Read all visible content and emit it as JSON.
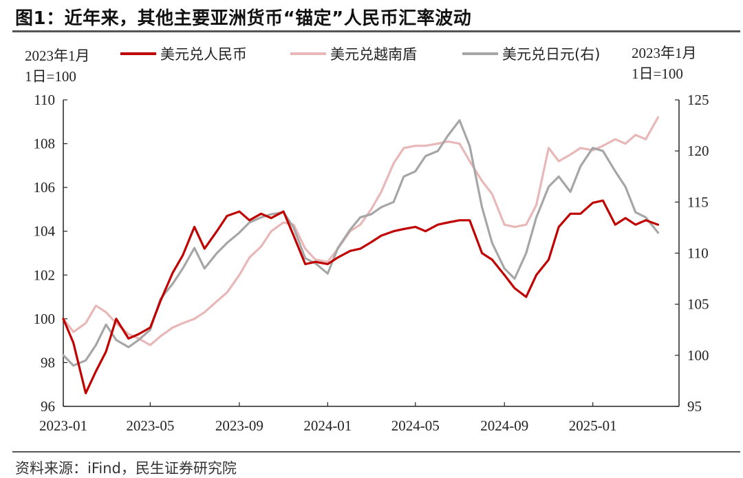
{
  "title": "图1：近年来，其他主要亚洲货币“锚定”人民币汇率波动",
  "source": "资料来源：iFind，民生证券研究院",
  "chart_data": {
    "type": "line",
    "left_unit": [
      "2023年1月",
      "1日=100"
    ],
    "right_unit": [
      "2023年1月",
      "1日=100"
    ],
    "y_left": {
      "min": 96,
      "max": 110,
      "ticks": [
        "96",
        "98",
        "100",
        "102",
        "104",
        "106",
        "108",
        "110"
      ]
    },
    "y_right": {
      "min": 95,
      "max": 125,
      "ticks": [
        "95",
        "100",
        "105",
        "110",
        "115",
        "120",
        "125"
      ]
    },
    "x_ticks": [
      "2023-01",
      "2023-05",
      "2023-09",
      "2024-01",
      "2024-05",
      "2024-09",
      "2025-01"
    ],
    "legend_position": "top",
    "series": [
      {
        "name": "美元兑人民币",
        "axis": "left",
        "color": "#c00000",
        "points": [
          [
            "2023-01",
            100.0
          ],
          [
            "2023-01-15",
            98.9
          ],
          [
            "2023-02",
            96.6
          ],
          [
            "2023-02-15",
            97.6
          ],
          [
            "2023-03",
            98.5
          ],
          [
            "2023-03-15",
            100.0
          ],
          [
            "2023-04",
            99.1
          ],
          [
            "2023-04-15",
            99.3
          ],
          [
            "2023-05",
            99.6
          ],
          [
            "2023-05-15",
            100.8
          ],
          [
            "2023-06",
            102.1
          ],
          [
            "2023-06-15",
            102.9
          ],
          [
            "2023-07",
            104.2
          ],
          [
            "2023-07-15",
            103.2
          ],
          [
            "2023-08",
            104.0
          ],
          [
            "2023-08-15",
            104.7
          ],
          [
            "2023-09",
            104.9
          ],
          [
            "2023-09-15",
            104.5
          ],
          [
            "2023-10",
            104.8
          ],
          [
            "2023-10-15",
            104.6
          ],
          [
            "2023-11",
            104.9
          ],
          [
            "2023-11-15",
            103.8
          ],
          [
            "2023-12",
            102.5
          ],
          [
            "2023-12-15",
            102.6
          ],
          [
            "2024-01",
            102.5
          ],
          [
            "2024-01-15",
            102.8
          ],
          [
            "2024-02",
            103.1
          ],
          [
            "2024-02-15",
            103.2
          ],
          [
            "2024-03",
            103.5
          ],
          [
            "2024-03-15",
            103.8
          ],
          [
            "2024-04",
            104.0
          ],
          [
            "2024-04-15",
            104.1
          ],
          [
            "2024-05",
            104.2
          ],
          [
            "2024-05-15",
            104.0
          ],
          [
            "2024-06",
            104.3
          ],
          [
            "2024-06-15",
            104.4
          ],
          [
            "2024-07",
            104.5
          ],
          [
            "2024-07-15",
            104.5
          ],
          [
            "2024-08",
            103.0
          ],
          [
            "2024-08-15",
            102.7
          ],
          [
            "2024-09",
            102.0
          ],
          [
            "2024-09-15",
            101.4
          ],
          [
            "2024-10",
            101.0
          ],
          [
            "2024-10-15",
            102.0
          ],
          [
            "2024-11",
            102.7
          ],
          [
            "2024-11-15",
            104.2
          ],
          [
            "2024-12",
            104.8
          ],
          [
            "2024-12-15",
            104.8
          ],
          [
            "2025-01",
            105.3
          ],
          [
            "2025-01-15",
            105.4
          ],
          [
            "2025-02",
            104.3
          ],
          [
            "2025-02-15",
            104.6
          ],
          [
            "2025-03",
            104.3
          ],
          [
            "2025-03-15",
            104.5
          ],
          [
            "2025-04",
            104.3
          ]
        ]
      },
      {
        "name": "美元兑越南盾",
        "axis": "left",
        "color": "#e8b7b7",
        "points": [
          [
            "2023-01",
            100.0
          ],
          [
            "2023-01-15",
            99.4
          ],
          [
            "2023-02",
            99.8
          ],
          [
            "2023-02-15",
            100.6
          ],
          [
            "2023-03",
            100.3
          ],
          [
            "2023-03-15",
            99.8
          ],
          [
            "2023-04",
            99.3
          ],
          [
            "2023-04-15",
            99.1
          ],
          [
            "2023-05",
            98.8
          ],
          [
            "2023-05-15",
            99.2
          ],
          [
            "2023-06",
            99.6
          ],
          [
            "2023-06-15",
            99.8
          ],
          [
            "2023-07",
            100.0
          ],
          [
            "2023-07-15",
            100.3
          ],
          [
            "2023-08",
            100.8
          ],
          [
            "2023-08-15",
            101.2
          ],
          [
            "2023-09",
            102.0
          ],
          [
            "2023-09-15",
            102.8
          ],
          [
            "2023-10",
            103.3
          ],
          [
            "2023-10-15",
            104.0
          ],
          [
            "2023-11",
            104.4
          ],
          [
            "2023-11-15",
            104.3
          ],
          [
            "2023-12",
            103.2
          ],
          [
            "2023-12-15",
            102.7
          ],
          [
            "2024-01",
            102.6
          ],
          [
            "2024-01-15",
            103.2
          ],
          [
            "2024-02",
            104.0
          ],
          [
            "2024-02-15",
            104.3
          ],
          [
            "2024-03",
            105.0
          ],
          [
            "2024-03-15",
            105.8
          ],
          [
            "2024-04",
            107.1
          ],
          [
            "2024-04-15",
            107.8
          ],
          [
            "2024-05",
            107.9
          ],
          [
            "2024-05-15",
            107.9
          ],
          [
            "2024-06",
            108.0
          ],
          [
            "2024-06-15",
            108.1
          ],
          [
            "2024-07",
            108.0
          ],
          [
            "2024-07-15",
            107.2
          ],
          [
            "2024-08",
            106.3
          ],
          [
            "2024-08-15",
            105.7
          ],
          [
            "2024-09",
            104.3
          ],
          [
            "2024-09-15",
            104.2
          ],
          [
            "2024-10",
            104.3
          ],
          [
            "2024-10-15",
            105.2
          ],
          [
            "2024-11",
            107.8
          ],
          [
            "2024-11-15",
            107.2
          ],
          [
            "2024-12",
            107.5
          ],
          [
            "2024-12-15",
            107.8
          ],
          [
            "2025-01",
            107.7
          ],
          [
            "2025-01-15",
            107.9
          ],
          [
            "2025-02",
            108.2
          ],
          [
            "2025-02-15",
            108.0
          ],
          [
            "2025-03",
            108.4
          ],
          [
            "2025-03-15",
            108.2
          ],
          [
            "2025-04",
            109.2
          ]
        ]
      },
      {
        "name": "美元兑日元(右)",
        "axis": "right",
        "color": "#a6a6a6",
        "points": [
          [
            "2023-01",
            100.0
          ],
          [
            "2023-01-15",
            99.0
          ],
          [
            "2023-02",
            99.5
          ],
          [
            "2023-02-15",
            101.0
          ],
          [
            "2023-03",
            103.0
          ],
          [
            "2023-03-15",
            101.5
          ],
          [
            "2023-04",
            100.8
          ],
          [
            "2023-04-15",
            101.5
          ],
          [
            "2023-05",
            102.5
          ],
          [
            "2023-05-15",
            105.5
          ],
          [
            "2023-06",
            107.0
          ],
          [
            "2023-06-15",
            108.5
          ],
          [
            "2023-07",
            110.5
          ],
          [
            "2023-07-15",
            108.5
          ],
          [
            "2023-08",
            110.0
          ],
          [
            "2023-08-15",
            111.0
          ],
          [
            "2023-09",
            112.0
          ],
          [
            "2023-09-15",
            113.0
          ],
          [
            "2023-10",
            113.5
          ],
          [
            "2023-10-15",
            113.8
          ],
          [
            "2023-11",
            114.0
          ],
          [
            "2023-11-15",
            112.5
          ],
          [
            "2023-12",
            109.5
          ],
          [
            "2023-12-15",
            109.0
          ],
          [
            "2024-01",
            108.0
          ],
          [
            "2024-01-15",
            110.5
          ],
          [
            "2024-02",
            112.3
          ],
          [
            "2024-02-15",
            113.5
          ],
          [
            "2024-03",
            113.8
          ],
          [
            "2024-03-15",
            114.5
          ],
          [
            "2024-04",
            115.0
          ],
          [
            "2024-04-15",
            117.5
          ],
          [
            "2024-05",
            118.0
          ],
          [
            "2024-05-15",
            119.5
          ],
          [
            "2024-06",
            120.0
          ],
          [
            "2024-06-15",
            121.5
          ],
          [
            "2024-07",
            123.0
          ],
          [
            "2024-07-15",
            120.5
          ],
          [
            "2024-08",
            114.5
          ],
          [
            "2024-08-15",
            111.0
          ],
          [
            "2024-09",
            108.5
          ],
          [
            "2024-09-15",
            107.5
          ],
          [
            "2024-10",
            110.0
          ],
          [
            "2024-10-15",
            113.5
          ],
          [
            "2024-11",
            116.5
          ],
          [
            "2024-11-15",
            117.5
          ],
          [
            "2024-12",
            116.0
          ],
          [
            "2024-12-15",
            118.5
          ],
          [
            "2025-01",
            120.3
          ],
          [
            "2025-01-15",
            120.0
          ],
          [
            "2025-02",
            118.0
          ],
          [
            "2025-02-15",
            116.5
          ],
          [
            "2025-03",
            114.0
          ],
          [
            "2025-03-15",
            113.5
          ],
          [
            "2025-04",
            112.0
          ]
        ]
      }
    ]
  }
}
